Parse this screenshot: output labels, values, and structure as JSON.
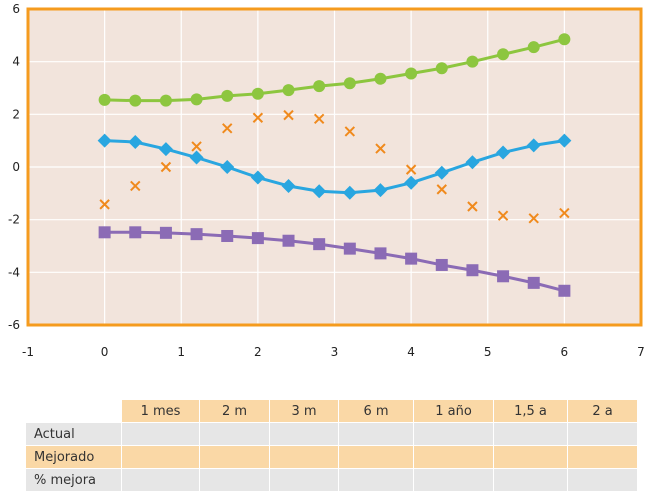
{
  "chart_data": {
    "type": "line",
    "xlim": [
      -1,
      7
    ],
    "ylim": [
      -6,
      6
    ],
    "x_ticks": [
      "-1",
      "0",
      "1",
      "2",
      "3",
      "4",
      "5",
      "6",
      "7"
    ],
    "y_ticks": [
      "6",
      "4",
      "2",
      "0",
      "-2",
      "-4",
      "-6"
    ],
    "grid": true,
    "plot_background": "#f2e4dc",
    "frame_color": "#f59b1e",
    "series": [
      {
        "marker": "circle",
        "color": "#8dc63f",
        "line": true,
        "x": [
          0,
          0.4,
          0.8,
          1.2,
          1.6,
          2.0,
          2.4,
          2.8,
          3.2,
          3.6,
          4.0,
          4.4,
          4.8,
          5.2,
          5.6,
          6.0
        ],
        "y": [
          2.55,
          2.52,
          2.52,
          2.57,
          2.7,
          2.78,
          2.92,
          3.07,
          3.18,
          3.35,
          3.55,
          3.75,
          4.0,
          4.28,
          4.55,
          4.85
        ]
      },
      {
        "marker": "diamond",
        "color": "#29a6e0",
        "line": true,
        "x": [
          0,
          0.4,
          0.8,
          1.2,
          1.6,
          2.0,
          2.4,
          2.8,
          3.2,
          3.6,
          4.0,
          4.4,
          4.8,
          5.2,
          5.6,
          6.0
        ],
        "y": [
          1.0,
          0.95,
          0.68,
          0.36,
          0.0,
          -0.4,
          -0.72,
          -0.92,
          -0.98,
          -0.88,
          -0.6,
          -0.22,
          0.18,
          0.55,
          0.82,
          1.0
        ]
      },
      {
        "marker": "x",
        "color": "#f08a1d",
        "line": false,
        "x": [
          0,
          0.4,
          0.8,
          1.2,
          1.6,
          2.0,
          2.4,
          2.8,
          3.2,
          3.6,
          4.0,
          4.4,
          4.8,
          5.2,
          5.6,
          6.0
        ],
        "y": [
          -1.42,
          -0.72,
          0.0,
          0.78,
          1.47,
          1.87,
          1.97,
          1.83,
          1.35,
          0.7,
          -0.1,
          -0.85,
          -1.5,
          -1.85,
          -1.95,
          -1.75
        ]
      },
      {
        "marker": "square",
        "color": "#8b6bb5",
        "line": true,
        "x": [
          0,
          0.4,
          0.8,
          1.2,
          1.6,
          2.0,
          2.4,
          2.8,
          3.2,
          3.6,
          4.0,
          4.4,
          4.8,
          5.2,
          5.6,
          6.0
        ],
        "y": [
          -2.48,
          -2.48,
          -2.5,
          -2.55,
          -2.62,
          -2.7,
          -2.8,
          -2.93,
          -3.1,
          -3.28,
          -3.48,
          -3.72,
          -3.92,
          -4.15,
          -4.4,
          -4.7
        ]
      }
    ]
  },
  "table": {
    "headers": [
      "1 mes",
      "2 m",
      "3 m",
      "6 m",
      "1 año",
      "1,5 a",
      "2 a"
    ],
    "rows": [
      {
        "label": "Actual",
        "cells": [
          "",
          "",
          "",
          "",
          "",
          "",
          ""
        ]
      },
      {
        "label": "Mejorado",
        "cells": [
          "",
          "",
          "",
          "",
          "",
          "",
          ""
        ]
      },
      {
        "label": "% mejora",
        "cells": [
          "",
          "",
          "",
          "",
          "",
          "",
          ""
        ]
      }
    ]
  }
}
